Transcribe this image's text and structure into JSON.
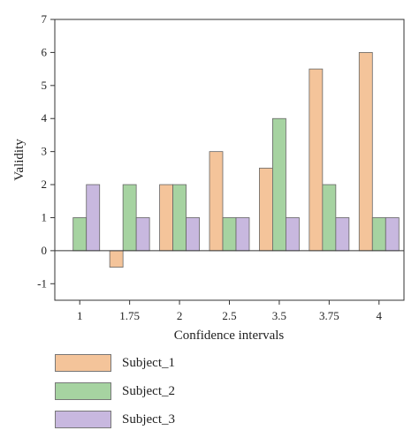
{
  "chart_data": {
    "type": "bar",
    "categories": [
      "1",
      "1.75",
      "2",
      "2.5",
      "3.5",
      "3.75",
      "4"
    ],
    "series": [
      {
        "name": "Subject_1",
        "color": "#f4c49a",
        "values": [
          0,
          -0.5,
          2,
          3,
          2.5,
          5.5,
          6
        ]
      },
      {
        "name": "Subject_2",
        "color": "#a6d3a1",
        "values": [
          1,
          2,
          2,
          1,
          4,
          2,
          1
        ]
      },
      {
        "name": "Subject_3",
        "color": "#c8b8df",
        "values": [
          2,
          1,
          1,
          1,
          1,
          1,
          1
        ]
      }
    ],
    "xlabel": "Confidence intervals",
    "ylabel": "Validity",
    "ylim": [
      -1.5,
      7
    ],
    "yticks": [
      -1,
      0,
      1,
      2,
      3,
      4,
      5,
      6,
      7
    ],
    "ytick_labels": [
      "-1",
      "0",
      "1",
      "2",
      "3",
      "4",
      "5",
      "6",
      "7"
    ],
    "grid": false,
    "legend_position": "bottom-left"
  }
}
